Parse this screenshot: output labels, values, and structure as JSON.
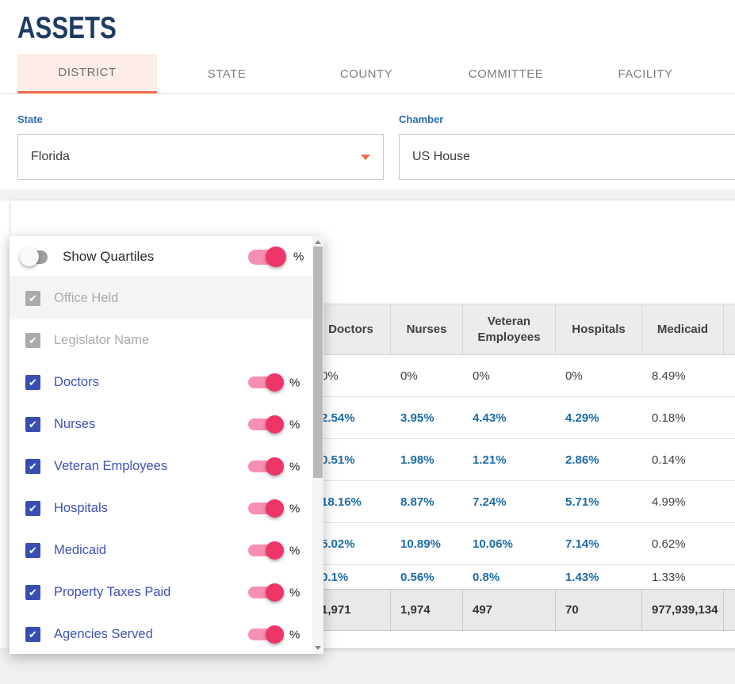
{
  "page": {
    "title": "ASSETS"
  },
  "tabs": [
    {
      "label": "DISTRICT",
      "active": true
    },
    {
      "label": "STATE",
      "active": false
    },
    {
      "label": "COUNTY",
      "active": false
    },
    {
      "label": "COMMITTEE",
      "active": false
    },
    {
      "label": "FACILITY",
      "active": false
    }
  ],
  "filters": {
    "state": {
      "label": "State",
      "value": "Florida"
    },
    "chamber": {
      "label": "Chamber",
      "value": "US House"
    }
  },
  "popup": {
    "quartiles_label": "Show Quartiles",
    "quartiles_toggle_on": false,
    "percent_label": "%",
    "items": [
      {
        "label": "Office Held",
        "checked": true,
        "disabled": true,
        "has_percent_toggle": false
      },
      {
        "label": "Legislator Name",
        "checked": true,
        "disabled": true,
        "has_percent_toggle": false
      },
      {
        "label": "Doctors",
        "checked": true,
        "disabled": false,
        "has_percent_toggle": true,
        "percent_on": true
      },
      {
        "label": "Nurses",
        "checked": true,
        "disabled": false,
        "has_percent_toggle": true,
        "percent_on": true
      },
      {
        "label": "Veteran Employees",
        "checked": true,
        "disabled": false,
        "has_percent_toggle": true,
        "percent_on": true
      },
      {
        "label": "Hospitals",
        "checked": true,
        "disabled": false,
        "has_percent_toggle": true,
        "percent_on": true
      },
      {
        "label": "Medicaid",
        "checked": true,
        "disabled": false,
        "has_percent_toggle": true,
        "percent_on": true
      },
      {
        "label": "Property Taxes Paid",
        "checked": true,
        "disabled": false,
        "has_percent_toggle": true,
        "percent_on": true
      },
      {
        "label": "Agencies Served",
        "checked": true,
        "disabled": false,
        "has_percent_toggle": true,
        "percent_on": true
      }
    ]
  },
  "table": {
    "columns": [
      "",
      "",
      "Doctors",
      "Nurses",
      "Veteran Employees",
      "Hospitals",
      "Medicaid",
      ""
    ],
    "rows": [
      {
        "cells": [
          "",
          "",
          "0%",
          "0%",
          "0%",
          "0%",
          "8.49%",
          ""
        ],
        "link_cells": []
      },
      {
        "cells": [
          "",
          "",
          "2.54%",
          "3.95%",
          "4.43%",
          "4.29%",
          "0.18%",
          ""
        ],
        "link_cells": [
          2,
          3,
          4,
          5
        ]
      },
      {
        "cells": [
          "",
          "",
          "0.51%",
          "1.98%",
          "1.21%",
          "2.86%",
          "0.14%",
          ""
        ],
        "link_cells": [
          2,
          3,
          4,
          5
        ]
      },
      {
        "cells": [
          "",
          "",
          "18.16%",
          "8.87%",
          "7.24%",
          "5.71%",
          "4.99%",
          ""
        ],
        "link_cells": [
          2,
          3,
          4,
          5
        ]
      },
      {
        "cells": [
          "",
          "",
          "5.02%",
          "10.89%",
          "10.06%",
          "7.14%",
          "0.62%",
          ""
        ],
        "link_cells": [
          2,
          3,
          4,
          5
        ]
      },
      {
        "cells": [
          "",
          "",
          "0.1%",
          "0.56%",
          "0.8%",
          "1.43%",
          "1.33%",
          ""
        ],
        "link_cells": [
          2,
          3,
          4,
          5
        ]
      }
    ],
    "totals": [
      "",
      "",
      "1,971",
      "1,974",
      "497",
      "70",
      "977,939,134",
      ""
    ]
  },
  "colors": {
    "title_navy": "#1d3b63",
    "accent_orange": "#f4694c",
    "label_blue": "#2a6db3",
    "link_blue": "#1b6ca8",
    "checkbox_indigo": "#3a4db1",
    "item_label_indigo": "#3f51b5",
    "toggle_pink_knob": "#ee3567",
    "toggle_pink_track": "#f78fb2",
    "active_tab_bg": "#fdece7"
  }
}
